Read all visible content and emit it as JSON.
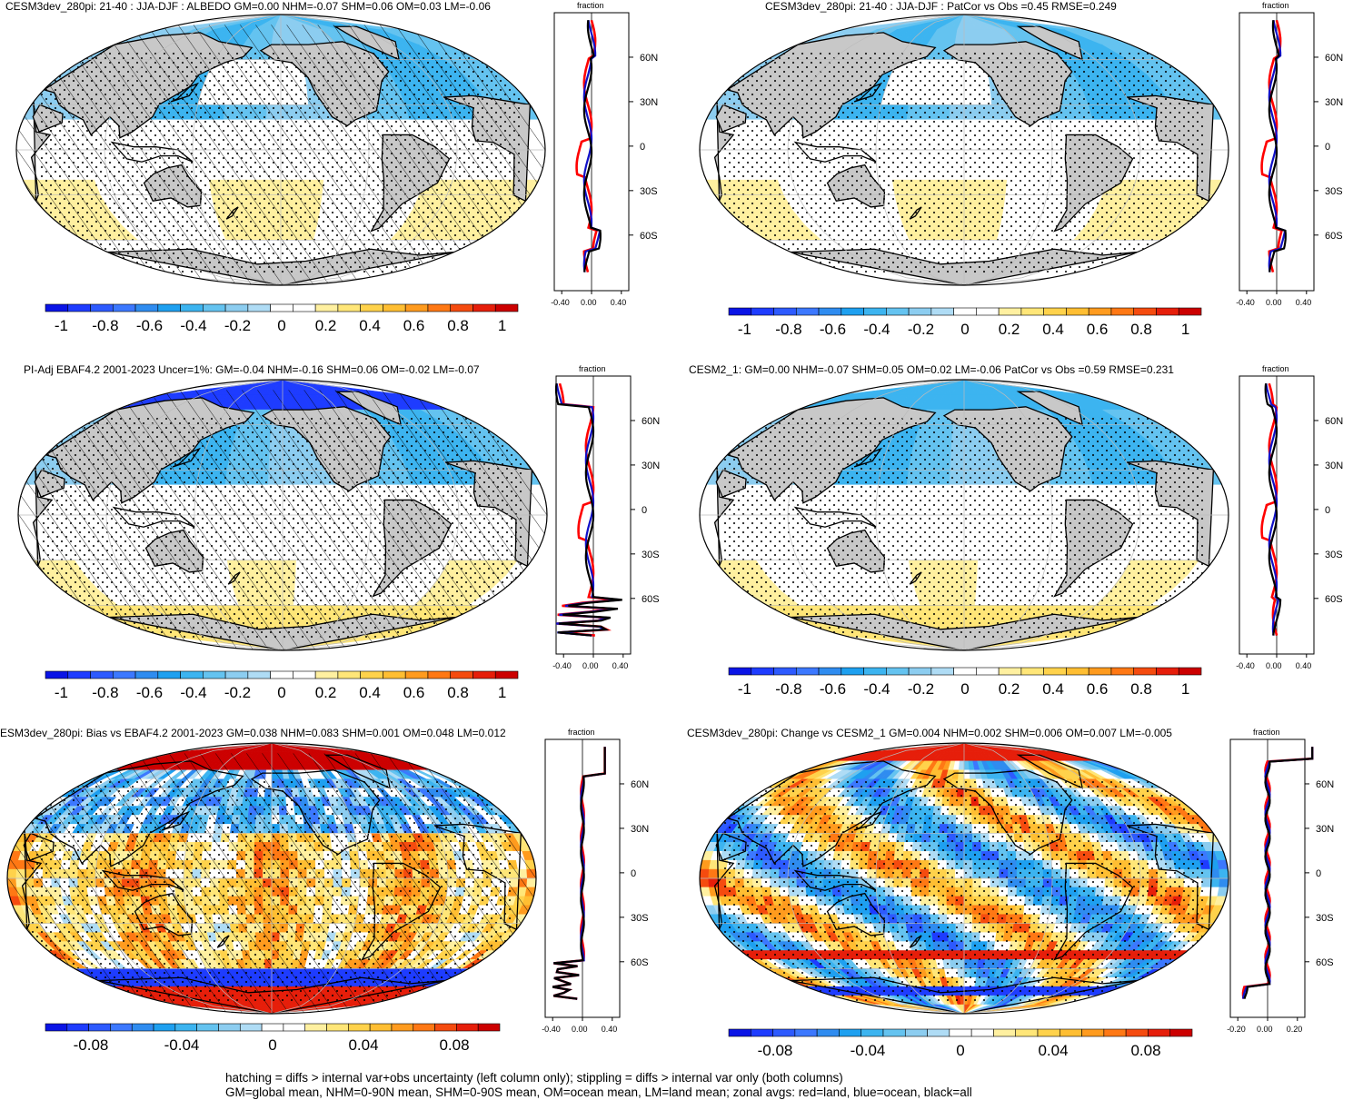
{
  "footer": {
    "line1": "hatching = diffs > internal var+obs uncertainty (left column only); stippling = diffs > internal var only (both columns)",
    "line2": "GM=global mean, NHM=0-90N mean, SHM=0-90S mean, OM=ocean mean, LM=land mean; zonal avgs: red=land, blue=ocean, black=all"
  },
  "colors": {
    "land": "#ff0000",
    "ocean": "#1010c8",
    "all": "#000000",
    "mask": "#c8c8c8"
  },
  "panels": [
    {
      "title": "CESM3dev_280pi: 21-40 : JJA-DJF : ALBEDO GM=0.00 NHM=-0.07 SHM=0.06 OM=0.03 LM=-0.06",
      "unit_label": "fraction",
      "lat_ticks": [
        "60N",
        "30N",
        "0",
        "30S",
        "60S"
      ],
      "profile_ticks": [
        "-0.40",
        "0.00",
        "0.40"
      ],
      "colorbar_labels": [
        "-1",
        "-0.8",
        "-0.6",
        "-0.4",
        "-0.2",
        "0",
        "0.2",
        "0.4",
        "0.6",
        "0.8",
        "1"
      ],
      "overlay": "hatching+stippling",
      "pattern": "change1"
    },
    {
      "title": "CESM3dev_280pi: 21-40 : JJA-DJF : PatCor vs Obs =0.45 RMSE=0.249",
      "unit_label": "fraction",
      "lat_ticks": [
        "60N",
        "30N",
        "0",
        "30S",
        "60S"
      ],
      "profile_ticks": [
        "-0.40",
        "0.00",
        "0.40"
      ],
      "colorbar_labels": [
        "-1",
        "-0.8",
        "-0.6",
        "-0.4",
        "-0.2",
        "0",
        "0.2",
        "0.4",
        "0.6",
        "0.8",
        "1"
      ],
      "overlay": "stippling",
      "pattern": "change1"
    },
    {
      "title": "PI-Adj EBAF4.2 2001-2023 Uncer=1%: GM=-0.04 NHM=-0.16 SHM=0.06 OM=-0.02 LM=-0.07",
      "unit_label": "fraction",
      "lat_ticks": [
        "60N",
        "30N",
        "0",
        "30S",
        "60S"
      ],
      "profile_ticks": [
        "-0.40",
        "0.00",
        "0.40"
      ],
      "colorbar_labels": [
        "-1",
        "-0.8",
        "-0.6",
        "-0.4",
        "-0.2",
        "0",
        "0.2",
        "0.4",
        "0.6",
        "0.8",
        "1"
      ],
      "overlay": "hatching+stippling",
      "pattern": "obs"
    },
    {
      "title": "CESM2_1: GM=0.00 NHM=-0.07 SHM=0.05 OM=0.02 LM=-0.06 PatCor vs Obs =0.59 RMSE=0.231",
      "unit_label": "fraction",
      "lat_ticks": [
        "60N",
        "30N",
        "0",
        "30S",
        "60S"
      ],
      "profile_ticks": [
        "-0.40",
        "0.00",
        "0.40"
      ],
      "colorbar_labels": [
        "-1",
        "-0.8",
        "-0.6",
        "-0.4",
        "-0.2",
        "0",
        "0.2",
        "0.4",
        "0.6",
        "0.8",
        "1"
      ],
      "overlay": "stippling",
      "pattern": "obs"
    },
    {
      "title": "ESM3dev_280pi: Bias vs EBAF4.2 2001-2023 GM=0.038 NHM=0.083 SHM=0.001 OM=0.048 LM=0.012",
      "unit_label": "fraction",
      "lat_ticks": [
        "60N",
        "30N",
        "0",
        "30S",
        "60S"
      ],
      "profile_ticks": [
        "-0.40",
        "0.00",
        "0.40"
      ],
      "colorbar_labels": [
        "-0.08",
        "-0.04",
        "0",
        "0.04",
        "0.08"
      ],
      "overlay": "hatching+stippling",
      "pattern": "bias"
    },
    {
      "title": "CESM3dev_280pi: Change vs CESM2_1 GM=0.004 NHM=0.002 SHM=0.006 OM=0.007 LM=-0.005",
      "unit_label": "fraction",
      "lat_ticks": [
        "60N",
        "30N",
        "0",
        "30S",
        "60S"
      ],
      "profile_ticks": [
        "-0.20",
        "0.00",
        "0.20"
      ],
      "colorbar_labels": [
        "-0.08",
        "-0.04",
        "0",
        "0.04",
        "0.08"
      ],
      "overlay": "stippling",
      "pattern": "diff"
    }
  ]
}
